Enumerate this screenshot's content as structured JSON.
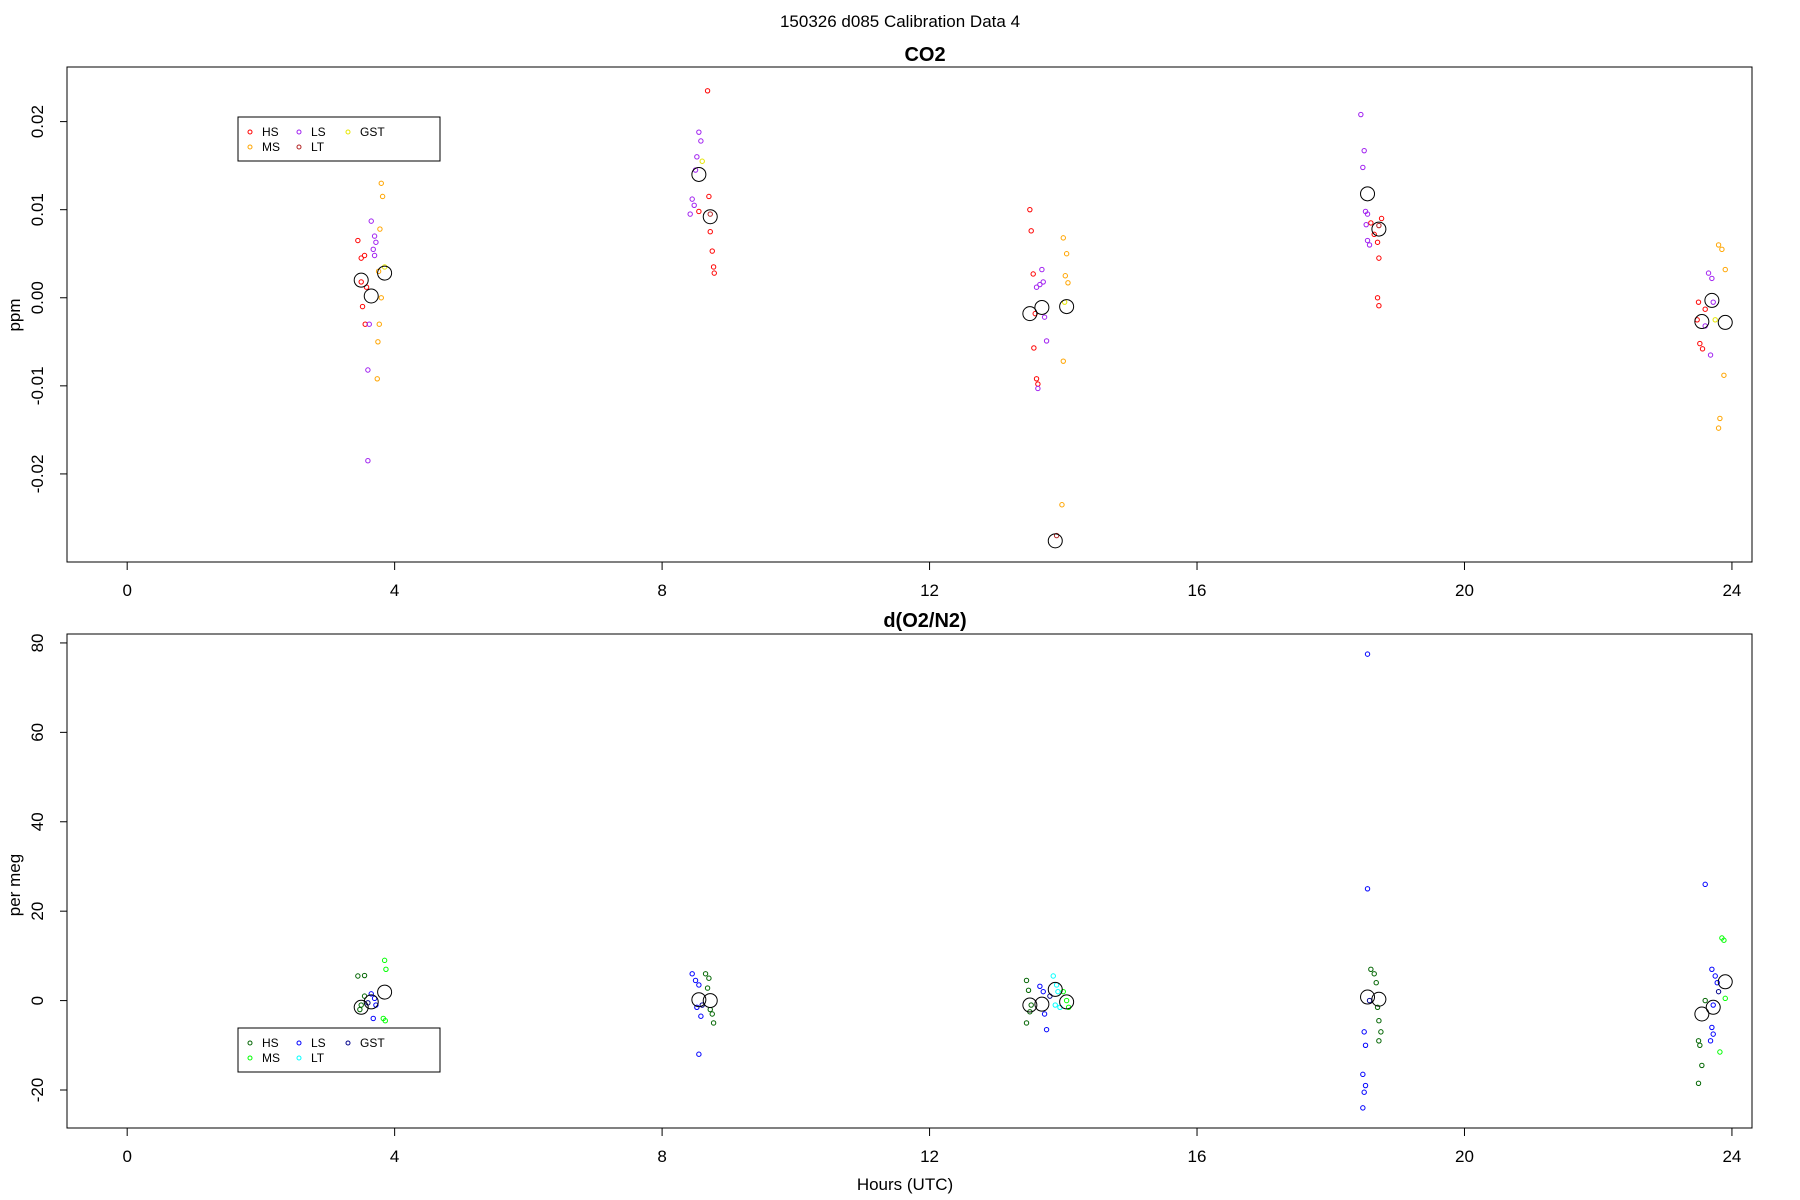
{
  "figure_title": "150326   d085   Calibration Data 4",
  "chart_data": [
    {
      "type": "scatter",
      "title": "CO2",
      "xlabel": "",
      "ylabel": "ppm",
      "xlim": [
        -0.9,
        24.3
      ],
      "ylim": [
        -0.03,
        0.0262
      ],
      "xticks": [
        0,
        4,
        8,
        12,
        16,
        20,
        24
      ],
      "yticks": [
        -0.02,
        -0.01,
        0.0,
        0.01,
        0.02
      ],
      "ytick_labels": [
        "-0.02",
        "-0.01",
        "0.00",
        "0.01",
        "0.02"
      ],
      "legend": {
        "position": "top-left",
        "entries": [
          {
            "label": "HS",
            "color": "#ff0000"
          },
          {
            "label": "MS",
            "color": "#ffa500"
          },
          {
            "label": "LS",
            "color": "#a020f0"
          },
          {
            "label": "LT",
            "color": "#b22222"
          },
          {
            "label": "GST",
            "color": "#ffff00"
          }
        ]
      },
      "series": [
        {
          "name": "HS",
          "color": "#ff0000",
          "points": [
            [
              3.45,
              0.0065
            ],
            [
              3.5,
              0.0045
            ],
            [
              3.55,
              0.0048
            ],
            [
              3.5,
              0.0018
            ],
            [
              3.58,
              0.0012
            ],
            [
              3.52,
              -0.001
            ],
            [
              3.56,
              -0.003
            ],
            [
              8.55,
              0.0098
            ],
            [
              8.7,
              0.0115
            ],
            [
              8.68,
              0.0235
            ],
            [
              8.72,
              0.0075
            ],
            [
              8.75,
              0.0053
            ],
            [
              8.77,
              0.0035
            ],
            [
              8.78,
              0.0028
            ],
            [
              13.5,
              0.01
            ],
            [
              13.52,
              0.0076
            ],
            [
              13.55,
              0.0027
            ],
            [
              13.58,
              -0.0018
            ],
            [
              13.56,
              -0.0057
            ],
            [
              13.6,
              -0.0092
            ],
            [
              13.62,
              -0.0098
            ],
            [
              18.6,
              0.0085
            ],
            [
              18.65,
              0.0072
            ],
            [
              18.7,
              0.0063
            ],
            [
              18.72,
              0.0045
            ],
            [
              18.76,
              0.009
            ],
            [
              18.7,
              0.0
            ],
            [
              18.72,
              -0.0009
            ],
            [
              23.5,
              -0.0005
            ],
            [
              23.48,
              -0.0025
            ],
            [
              23.52,
              -0.0052
            ],
            [
              23.56,
              -0.0058
            ],
            [
              23.6,
              -0.0013
            ]
          ]
        },
        {
          "name": "MS",
          "color": "#ffa500",
          "points": [
            [
              3.8,
              0.013
            ],
            [
              3.82,
              0.0115
            ],
            [
              3.78,
              0.0078
            ],
            [
              3.76,
              0.003
            ],
            [
              3.8,
              0.0
            ],
            [
              3.77,
              -0.003
            ],
            [
              3.75,
              -0.005
            ],
            [
              3.74,
              -0.0092
            ],
            [
              14.0,
              0.0068
            ],
            [
              14.05,
              0.005
            ],
            [
              14.03,
              0.0025
            ],
            [
              14.07,
              0.0017
            ],
            [
              14.0,
              -0.0072
            ],
            [
              13.98,
              -0.0235
            ],
            [
              23.8,
              0.006
            ],
            [
              23.85,
              0.0055
            ],
            [
              23.9,
              0.0032
            ],
            [
              23.88,
              -0.0088
            ],
            [
              23.82,
              -0.0137
            ],
            [
              23.8,
              -0.0148
            ]
          ]
        },
        {
          "name": "LS",
          "color": "#a020f0",
          "points": [
            [
              3.65,
              0.0087
            ],
            [
              3.7,
              0.007
            ],
            [
              3.72,
              0.0063
            ],
            [
              3.68,
              0.0055
            ],
            [
              3.7,
              0.0048
            ],
            [
              3.62,
              -0.003
            ],
            [
              3.6,
              -0.0082
            ],
            [
              3.6,
              -0.0185
            ],
            [
              8.55,
              0.0188
            ],
            [
              8.58,
              0.0178
            ],
            [
              8.52,
              0.016
            ],
            [
              8.5,
              0.0145
            ],
            [
              8.45,
              0.0112
            ],
            [
              8.48,
              0.0105
            ],
            [
              8.42,
              0.0095
            ],
            [
              13.6,
              0.0012
            ],
            [
              13.65,
              0.0015
            ],
            [
              13.68,
              0.0032
            ],
            [
              13.7,
              0.0018
            ],
            [
              13.72,
              -0.0022
            ],
            [
              13.75,
              -0.0049
            ],
            [
              13.62,
              -0.0103
            ],
            [
              18.45,
              0.0208
            ],
            [
              18.5,
              0.0167
            ],
            [
              18.48,
              0.0148
            ],
            [
              18.52,
              0.0098
            ],
            [
              18.55,
              0.0095
            ],
            [
              18.53,
              0.0083
            ],
            [
              18.55,
              0.0065
            ],
            [
              18.58,
              0.006
            ],
            [
              23.65,
              0.0028
            ],
            [
              23.7,
              0.0022
            ],
            [
              23.72,
              -0.0005
            ],
            [
              23.6,
              -0.0032
            ],
            [
              23.68,
              -0.0065
            ]
          ]
        },
        {
          "name": "LT",
          "color": "#b22222",
          "points": [
            [
              8.72,
              0.0095
            ],
            [
              13.9,
              -0.027
            ],
            [
              18.72,
              0.0082
            ]
          ]
        },
        {
          "name": "GST",
          "color": "#ffff00",
          "points": [
            [
              3.85,
              0.0035
            ],
            [
              8.6,
              0.0155
            ],
            [
              14.02,
              -0.0005
            ],
            [
              23.75,
              -0.0025
            ]
          ]
        }
      ],
      "means": [
        [
          3.5,
          0.002
        ],
        [
          3.65,
          0.0002
        ],
        [
          3.85,
          0.0028
        ],
        [
          8.55,
          0.014
        ],
        [
          8.72,
          0.0092
        ],
        [
          13.5,
          -0.0018
        ],
        [
          13.68,
          -0.0011
        ],
        [
          14.05,
          -0.001
        ],
        [
          13.88,
          -0.0276
        ],
        [
          18.55,
          0.0118
        ],
        [
          18.72,
          0.0078
        ],
        [
          23.55,
          -0.0027
        ],
        [
          23.7,
          -0.0003
        ],
        [
          23.9,
          -0.0028
        ]
      ]
    },
    {
      "type": "scatter",
      "title": "d(O2/N2)",
      "xlabel": "Hours (UTC)",
      "ylabel": "per meg",
      "xlim": [
        -0.9,
        24.3
      ],
      "ylim": [
        -28.5,
        82.0
      ],
      "xticks": [
        0,
        4,
        8,
        12,
        16,
        20,
        24
      ],
      "yticks": [
        -20,
        0,
        20,
        40,
        60,
        80
      ],
      "ytick_labels": [
        "-20",
        "0",
        "20",
        "40",
        "60",
        "80"
      ],
      "legend": {
        "position": "bottom-left",
        "entries": [
          {
            "label": "HS",
            "color": "#006400"
          },
          {
            "label": "MS",
            "color": "#00ff00"
          },
          {
            "label": "LS",
            "color": "#0000ff"
          },
          {
            "label": "LT",
            "color": "#00ffff"
          },
          {
            "label": "GST",
            "color": "#00008b"
          }
        ]
      },
      "series": [
        {
          "name": "HS",
          "color": "#006400",
          "points": [
            [
              3.45,
              5.5
            ],
            [
              3.55,
              5.6
            ],
            [
              3.55,
              1.0
            ],
            [
              3.5,
              -1.0
            ],
            [
              3.48,
              -2.0
            ],
            [
              8.65,
              6.0
            ],
            [
              8.7,
              5.0
            ],
            [
              8.68,
              2.8
            ],
            [
              8.72,
              -2.0
            ],
            [
              8.75,
              -3.0
            ],
            [
              8.77,
              -5.0
            ],
            [
              13.45,
              4.5
            ],
            [
              13.48,
              2.3
            ],
            [
              13.52,
              -1.0
            ],
            [
              13.5,
              -2.5
            ],
            [
              13.45,
              -5.0
            ],
            [
              18.6,
              7.0
            ],
            [
              18.65,
              6.0
            ],
            [
              18.68,
              4.0
            ],
            [
              18.7,
              -1.5
            ],
            [
              18.72,
              -4.5
            ],
            [
              18.75,
              -7.0
            ],
            [
              18.72,
              -9.0
            ],
            [
              23.5,
              -9.0
            ],
            [
              23.52,
              -10.0
            ],
            [
              23.55,
              -14.5
            ],
            [
              23.5,
              -18.5
            ],
            [
              23.6,
              0.0
            ]
          ]
        },
        {
          "name": "MS",
          "color": "#00ff00",
          "points": [
            [
              3.85,
              9.0
            ],
            [
              3.87,
              7.0
            ],
            [
              3.83,
              -4.0
            ],
            [
              3.86,
              -4.5
            ],
            [
              14.0,
              2.0
            ],
            [
              14.05,
              0.0
            ],
            [
              14.08,
              -1.5
            ],
            [
              23.85,
              14.0
            ],
            [
              23.88,
              13.5
            ],
            [
              23.9,
              0.5
            ],
            [
              23.82,
              -11.5
            ]
          ]
        },
        {
          "name": "LS",
          "color": "#0000ff",
          "points": [
            [
              3.65,
              1.5
            ],
            [
              3.7,
              0.5
            ],
            [
              3.72,
              -1.0
            ],
            [
              3.68,
              -4.0
            ],
            [
              8.45,
              6.0
            ],
            [
              8.5,
              4.5
            ],
            [
              8.55,
              3.5
            ],
            [
              8.52,
              -1.5
            ],
            [
              8.58,
              -3.5
            ],
            [
              8.55,
              -12.0
            ],
            [
              13.65,
              3.2
            ],
            [
              13.7,
              2.0
            ],
            [
              13.72,
              -3.0
            ],
            [
              13.75,
              -6.5
            ],
            [
              18.55,
              77.5
            ],
            [
              18.55,
              25.0
            ],
            [
              18.5,
              -7.0
            ],
            [
              18.52,
              -10.0
            ],
            [
              18.48,
              -16.5
            ],
            [
              18.52,
              -19.0
            ],
            [
              18.5,
              -20.5
            ],
            [
              18.48,
              -24.0
            ],
            [
              23.6,
              26.0
            ],
            [
              23.7,
              7.0
            ],
            [
              23.75,
              5.5
            ],
            [
              23.78,
              4.0
            ],
            [
              23.72,
              -1.0
            ],
            [
              23.7,
              -6.0
            ],
            [
              23.72,
              -7.5
            ],
            [
              23.68,
              -9.0
            ]
          ]
        },
        {
          "name": "LT",
          "color": "#00ffff",
          "points": [
            [
              13.85,
              5.5
            ],
            [
              13.9,
              3.5
            ],
            [
              13.92,
              2.0
            ],
            [
              13.88,
              -1.0
            ],
            [
              13.95,
              -1.5
            ]
          ]
        },
        {
          "name": "GST",
          "color": "#00008b",
          "points": [
            [
              3.6,
              -0.5
            ],
            [
              8.6,
              -1.0
            ],
            [
              13.8,
              1.0
            ],
            [
              18.58,
              0.0
            ],
            [
              23.8,
              2.0
            ]
          ]
        }
      ],
      "means": [
        [
          3.5,
          -1.5
        ],
        [
          3.65,
          -0.3
        ],
        [
          3.85,
          1.9
        ],
        [
          8.55,
          0.2
        ],
        [
          8.72,
          0.0
        ],
        [
          13.5,
          -1.0
        ],
        [
          13.68,
          -0.8
        ],
        [
          13.88,
          2.5
        ],
        [
          14.05,
          -0.3
        ],
        [
          18.55,
          0.8
        ],
        [
          18.72,
          0.3
        ],
        [
          23.55,
          -3.0
        ],
        [
          23.72,
          -1.5
        ],
        [
          23.9,
          4.2
        ]
      ]
    }
  ]
}
